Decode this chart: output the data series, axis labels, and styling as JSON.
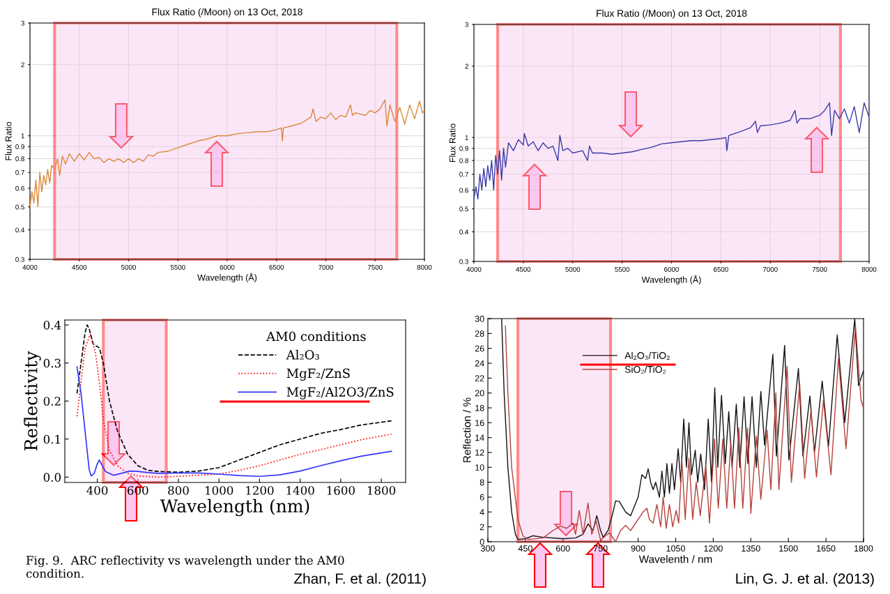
{
  "chart_data": [
    {
      "type": "line",
      "title": "Flux Ratio (/Moon) on 13 Oct, 2018",
      "xlabel": "Wavelength (Å)",
      "ylabel": "Flux Ratio",
      "log": "y",
      "grid": true,
      "xlim": [
        4000,
        8000
      ],
      "xticks": [
        4000,
        4500,
        5000,
        5500,
        6000,
        6500,
        7000,
        7500,
        8000
      ],
      "ylim": [
        0.3,
        3
      ],
      "yticks": [
        0.3,
        0.4,
        0.5,
        0.6,
        0.7,
        0.8,
        0.9,
        1,
        2,
        3
      ],
      "bands": [
        {
          "axis": "x",
          "from": 4250,
          "to": 7720,
          "color": "#f7c8ef"
        }
      ],
      "series": [
        {
          "color": "#d98a3a",
          "x": [
            4000,
            4020,
            4040,
            4060,
            4080,
            4100,
            4120,
            4140,
            4160,
            4180,
            4200,
            4220,
            4250,
            4280,
            4300,
            4330,
            4360,
            4400,
            4450,
            4500,
            4550,
            4600,
            4650,
            4700,
            4750,
            4800,
            4850,
            4900,
            4950,
            5000,
            5050,
            5100,
            5150,
            5200,
            5250,
            5300,
            5400,
            5500,
            5600,
            5700,
            5800,
            5900,
            6000,
            6100,
            6200,
            6300,
            6400,
            6500,
            6550,
            6560,
            6570,
            6650,
            6750,
            6850,
            6870,
            6900,
            6950,
            7000,
            7050,
            7100,
            7150,
            7200,
            7250,
            7270,
            7300,
            7400,
            7450,
            7500,
            7550,
            7600,
            7620,
            7650,
            7700,
            7750,
            7800,
            7850,
            7900,
            7950,
            7980,
            8000
          ],
          "values": [
            0.5,
            0.58,
            0.52,
            0.65,
            0.5,
            0.7,
            0.58,
            0.68,
            0.62,
            0.72,
            0.63,
            0.75,
            0.72,
            0.8,
            0.68,
            0.82,
            0.76,
            0.84,
            0.78,
            0.84,
            0.79,
            0.85,
            0.8,
            0.81,
            0.77,
            0.8,
            0.78,
            0.8,
            0.77,
            0.8,
            0.77,
            0.8,
            0.78,
            0.83,
            0.82,
            0.85,
            0.86,
            0.89,
            0.92,
            0.95,
            0.97,
            1.0,
            1.0,
            1.02,
            1.03,
            1.04,
            1.04,
            1.06,
            1.08,
            0.95,
            1.08,
            1.1,
            1.13,
            1.2,
            1.3,
            1.15,
            1.2,
            1.18,
            1.25,
            1.17,
            1.22,
            1.2,
            1.35,
            1.22,
            1.25,
            1.22,
            1.28,
            1.25,
            1.3,
            1.42,
            1.1,
            1.35,
            1.15,
            1.32,
            1.12,
            1.35,
            1.18,
            1.4,
            1.25,
            1.28
          ]
        }
      ]
    },
    {
      "type": "line",
      "title": "Flux Ratio (/Moon) on 13 Oct, 2018",
      "xlabel": "Wavelength (Å)",
      "ylabel": "Flux Ratio",
      "log": "y",
      "grid": true,
      "xlim": [
        4000,
        8000
      ],
      "xticks": [
        4000,
        4500,
        5000,
        5500,
        6000,
        6500,
        7000,
        7500,
        8000
      ],
      "ylim": [
        0.3,
        3
      ],
      "yticks": [
        0.3,
        0.4,
        0.5,
        0.6,
        0.7,
        0.8,
        0.9,
        1,
        2,
        3
      ],
      "bands": [
        {
          "axis": "x",
          "from": 4240,
          "to": 7710,
          "color": "#f7c8ef"
        }
      ],
      "series": [
        {
          "color": "#3a3aa8",
          "x": [
            4000,
            4020,
            4040,
            4060,
            4080,
            4100,
            4120,
            4140,
            4160,
            4180,
            4200,
            4220,
            4240,
            4260,
            4280,
            4300,
            4320,
            4350,
            4400,
            4450,
            4500,
            4510,
            4550,
            4600,
            4650,
            4700,
            4750,
            4800,
            4850,
            4870,
            4900,
            4950,
            5000,
            5100,
            5150,
            5170,
            5200,
            5300,
            5400,
            5500,
            5600,
            5700,
            5800,
            5900,
            6000,
            6100,
            6200,
            6300,
            6400,
            6500,
            6550,
            6560,
            6580,
            6700,
            6800,
            6850,
            6870,
            6900,
            7000,
            7100,
            7200,
            7250,
            7270,
            7300,
            7400,
            7500,
            7550,
            7600,
            7620,
            7650,
            7700,
            7750,
            7800,
            7850,
            7900,
            7950,
            8000
          ],
          "values": [
            0.55,
            0.62,
            0.55,
            0.7,
            0.6,
            0.74,
            0.62,
            0.76,
            0.66,
            0.8,
            0.6,
            0.84,
            0.7,
            0.88,
            0.66,
            0.9,
            0.75,
            0.95,
            0.88,
            0.98,
            0.93,
            1.04,
            0.92,
            0.96,
            0.88,
            0.95,
            0.9,
            0.92,
            0.8,
            1.02,
            0.88,
            0.9,
            0.86,
            0.88,
            0.8,
            0.92,
            0.86,
            0.86,
            0.85,
            0.86,
            0.87,
            0.89,
            0.91,
            0.94,
            0.95,
            0.96,
            0.97,
            0.97,
            0.98,
            0.99,
            1.0,
            0.88,
            1.02,
            1.06,
            1.1,
            1.17,
            1.05,
            1.12,
            1.13,
            1.15,
            1.18,
            1.3,
            1.15,
            1.2,
            1.2,
            1.24,
            1.3,
            1.4,
            1.02,
            1.3,
            1.2,
            1.32,
            1.15,
            1.35,
            1.05,
            1.4,
            1.22
          ]
        }
      ]
    },
    {
      "type": "line",
      "xlabel": "Wavelength (nm)",
      "ylabel": "Reflectivity",
      "legend": "top right",
      "legend_title": "AM0 conditions",
      "xlim": [
        240,
        1920
      ],
      "xticks": [
        400,
        600,
        800,
        1000,
        1200,
        1400,
        1600,
        1800
      ],
      "ylim": [
        -0.014,
        0.413
      ],
      "yticks": [
        {
          "value": 0,
          "label": "0.0"
        },
        0.1,
        0.2,
        0.3,
        0.4
      ],
      "bands": [
        {
          "axis": "x",
          "from": 430,
          "to": 740,
          "color": "#f7c8ef"
        }
      ],
      "annotations": [
        "Fig. 9.  ARC reflectivity vs wavelength under the AM0\ncondition.",
        "Zhan, F. et al. (2011)"
      ],
      "series": [
        {
          "name": "Al₂O₃",
          "color": "#000000",
          "line_style": "dashed",
          "x": [
            300,
            320,
            340,
            350,
            360,
            380,
            410,
            430,
            460,
            500,
            550,
            600,
            650,
            700,
            800,
            900,
            1000,
            1100,
            1200,
            1300,
            1400,
            1500,
            1600,
            1700,
            1850
          ],
          "values": [
            0.22,
            0.3,
            0.38,
            0.4,
            0.39,
            0.35,
            0.34,
            0.3,
            0.2,
            0.12,
            0.06,
            0.03,
            0.018,
            0.015,
            0.013,
            0.016,
            0.025,
            0.045,
            0.065,
            0.085,
            0.1,
            0.115,
            0.125,
            0.137,
            0.148
          ]
        },
        {
          "name": "MgF₂/ZnS",
          "color": "#ff0000",
          "line_style": "dotted",
          "x": [
            300,
            320,
            340,
            365,
            390,
            410,
            430,
            460,
            500,
            550,
            600,
            700,
            800,
            900,
            1000,
            1100,
            1200,
            1300,
            1400,
            1500,
            1600,
            1700,
            1850
          ],
          "values": [
            0.16,
            0.25,
            0.34,
            0.375,
            0.33,
            0.25,
            0.15,
            0.07,
            0.03,
            0.01,
            0.003,
            0.0,
            0.002,
            0.005,
            0.008,
            0.018,
            0.03,
            0.045,
            0.06,
            0.072,
            0.085,
            0.098,
            0.113
          ]
        },
        {
          "name": "MgF₂/Al2O3/ZnS",
          "color": "#3333ff",
          "line_style": "solid",
          "x": [
            300,
            320,
            340,
            360,
            370,
            385,
            400,
            410,
            420,
            440,
            480,
            520,
            560,
            600,
            650,
            700,
            800,
            900,
            1000,
            1100,
            1200,
            1300,
            1400,
            1500,
            1600,
            1700,
            1850
          ],
          "values": [
            0.29,
            0.22,
            0.12,
            0.02,
            0.003,
            0.01,
            0.035,
            0.045,
            0.035,
            0.015,
            0.005,
            0.01,
            0.016,
            0.015,
            0.012,
            0.01,
            0.011,
            0.011,
            0.008,
            0.004,
            0.002,
            0.006,
            0.016,
            0.03,
            0.043,
            0.055,
            0.068
          ]
        }
      ]
    },
    {
      "type": "line",
      "xlabel": "Wavelenth / nm",
      "ylabel": "Reflection / %",
      "legend": "top left",
      "xlim": [
        300,
        1800
      ],
      "xticks": [
        300,
        450,
        600,
        750,
        900,
        1050,
        1200,
        1350,
        1500,
        1650,
        1800
      ],
      "ylim": [
        0,
        30
      ],
      "yticks": [
        0,
        2,
        4,
        6,
        8,
        10,
        12,
        14,
        16,
        18,
        20,
        22,
        24,
        26,
        28,
        30
      ],
      "bands": [
        {
          "axis": "x",
          "from": 420,
          "to": 790,
          "color": "#f7c8ef"
        }
      ],
      "annotations": [
        "Lin, G. J. et al. (2013)"
      ],
      "series": [
        {
          "name": "Al₂O₃/TiO₂",
          "color": "#111111",
          "x": [
            355,
            365,
            380,
            395,
            410,
            420,
            450,
            480,
            520,
            600,
            650,
            680,
            700,
            720,
            735,
            750,
            760,
            780,
            800,
            810,
            825,
            850,
            870,
            900,
            915,
            930,
            940,
            950,
            960,
            970,
            985,
            995,
            1005,
            1015,
            1025,
            1035,
            1045,
            1060,
            1070,
            1082,
            1093,
            1103,
            1113,
            1128,
            1138,
            1150,
            1165,
            1180,
            1193,
            1206,
            1218,
            1233,
            1248,
            1262,
            1275,
            1292,
            1306,
            1323,
            1338,
            1355,
            1372,
            1390,
            1405,
            1438,
            1452,
            1485,
            1502,
            1540,
            1558,
            1586,
            1604,
            1635,
            1660,
            1695,
            1725,
            1765,
            1780,
            1800
          ],
          "values": [
            30,
            20,
            10,
            4,
            1,
            0.3,
            0.4,
            0.8,
            0.6,
            0.4,
            0.5,
            1.0,
            2.4,
            1.5,
            3.5,
            1.5,
            0.6,
            1.5,
            4,
            5.5,
            5.4,
            4,
            3.5,
            6,
            9,
            8.5,
            9.8,
            8,
            7,
            8,
            6,
            9.5,
            6,
            10.5,
            6.5,
            10.5,
            7,
            12.5,
            8,
            16.5,
            10,
            16,
            9,
            12.3,
            8,
            11.8,
            7,
            16.5,
            8,
            20.7,
            10,
            19.7,
            10.5,
            17.5,
            10,
            18.5,
            10,
            19.5,
            10.5,
            19.5,
            10,
            20.2,
            13,
            25.2,
            11.5,
            26.4,
            11,
            23.3,
            11.5,
            19.6,
            12,
            21.6,
            12.8,
            27.8,
            16,
            30,
            21,
            23
          ]
        },
        {
          "name": "SiO₂/TiO₂",
          "color": "#b5413a",
          "x": [
            370,
            380,
            395,
            420,
            440,
            460,
            520,
            560,
            590,
            615,
            640,
            650,
            665,
            680,
            700,
            715,
            732,
            750,
            770,
            785,
            800,
            810,
            830,
            850,
            870,
            900,
            920,
            935,
            945,
            960,
            975,
            990,
            1000,
            1012,
            1025,
            1038,
            1052,
            1062,
            1075,
            1088,
            1103,
            1118,
            1132,
            1148,
            1170,
            1185,
            1205,
            1220,
            1238,
            1254,
            1270,
            1285,
            1302,
            1318,
            1337,
            1350,
            1372,
            1390,
            1415,
            1430,
            1450,
            1462,
            1495,
            1512,
            1545,
            1565,
            1590,
            1612,
            1640,
            1670,
            1700,
            1730,
            1768,
            1790,
            1800
          ],
          "values": [
            29,
            20,
            10,
            3,
            0.8,
            0.3,
            0.5,
            1.5,
            2.1,
            1.8,
            2.5,
            1,
            4.2,
            1,
            5.2,
            1,
            2.8,
            0.2,
            0.8,
            1.2,
            0.5,
            0,
            1.5,
            2.2,
            1.5,
            3,
            4,
            4.5,
            3,
            2.5,
            5,
            2,
            6,
            1.8,
            5,
            2,
            4.2,
            2.5,
            10.8,
            3,
            11.2,
            3,
            8,
            3.5,
            10.3,
            2.5,
            13.8,
            4.5,
            13.8,
            4.5,
            13.4,
            4.5,
            15.3,
            4.5,
            15.3,
            3.8,
            14.2,
            5.7,
            15,
            7,
            20,
            7,
            23.6,
            8,
            21.3,
            8.5,
            17.6,
            8.7,
            19,
            9,
            24.7,
            12.5,
            29,
            19,
            18
          ]
        }
      ]
    }
  ]
}
